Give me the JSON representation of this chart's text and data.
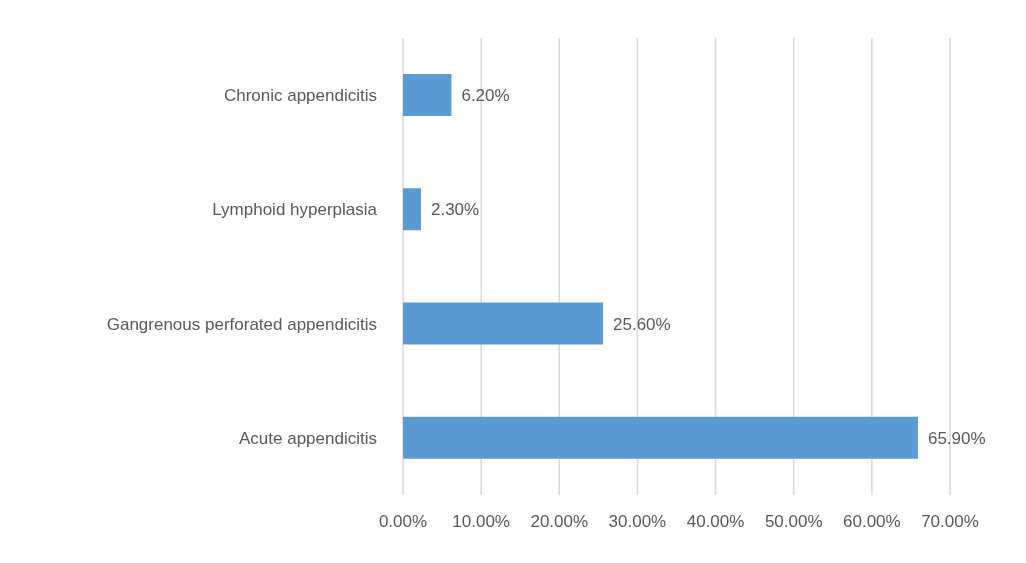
{
  "chart_data": {
    "type": "bar",
    "orientation": "horizontal",
    "categories": [
      "Chronic appendicitis",
      "Lymphoid hyperplasia",
      "Gangrenous perforated appendicitis",
      "Acute appendicitis"
    ],
    "values": [
      6.2,
      2.3,
      25.6,
      65.9
    ],
    "value_labels": [
      "6.20%",
      "2.30%",
      "25.60%",
      "65.90%"
    ],
    "color": "#5b9bd5",
    "xlim": [
      0,
      70
    ],
    "xticks": [
      {
        "value": 0,
        "label": "0.00%"
      },
      {
        "value": 10,
        "label": "10.00%"
      },
      {
        "value": 20,
        "label": "20.00%"
      },
      {
        "value": 30,
        "label": "30.00%"
      },
      {
        "value": 40,
        "label": "40.00%"
      },
      {
        "value": 50,
        "label": "50.00%"
      },
      {
        "value": 60,
        "label": "60.00%"
      },
      {
        "value": 70,
        "label": "70.00%"
      }
    ],
    "grid": "x",
    "legend": false
  }
}
